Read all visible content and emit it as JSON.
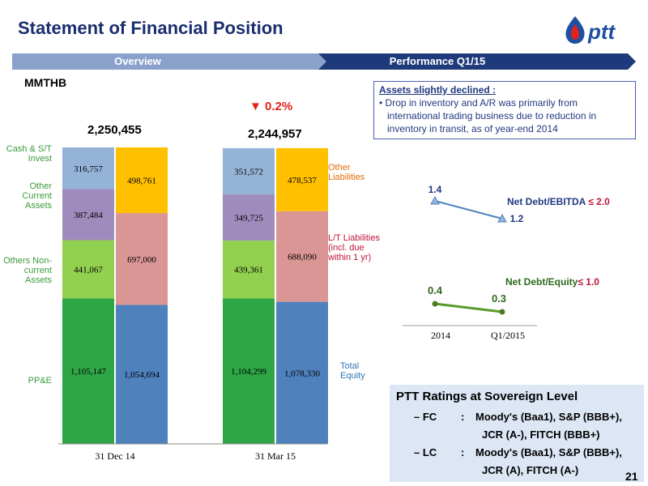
{
  "header": {
    "title": "Statement of Financial Position",
    "logo_text": "pttt",
    "tabs": [
      "Overview",
      "Performance Q1/15"
    ]
  },
  "unit": "MMTHB",
  "change_indicator": "0.2%",
  "totals": [
    "2,250,455",
    "2,244,957"
  ],
  "left_labels": {
    "cash": "Cash & S/T Invest",
    "other_current": "Other Current Assets",
    "others_noncurrent": "Others Non-current Assets",
    "ppe": "PP&E"
  },
  "right_labels": {
    "other_liabilities": "Other Liabilities",
    "lt_liabilities": "L/T Liabilities (incl. due within 1 yr)",
    "total_equity": "Total Equity"
  },
  "note": {
    "heading": "Assets slightly declined :",
    "bullet": "Drop in inventory and A/R was primarily from international trading business due to reduction in inventory in transit, as of year-end 2014"
  },
  "ratings": {
    "heading": "PTT Ratings at Sovereign Level",
    "rows": [
      {
        "key": "FC",
        "line1": "Moody's (Baa1), S&P (BBB+),",
        "line2": "JCR (A-), FITCH (BBB+)"
      },
      {
        "key": "LC",
        "line1": "Moody's (Baa1), S&P (BBB+),",
        "line2": "JCR (A), FITCH (A-)"
      }
    ]
  },
  "page_number": "21",
  "colors": {
    "ppe": "#2ea646",
    "others_noncurrent": "#92d050",
    "other_current": "#a08cbc",
    "cash": "#95b3d7",
    "equity": "#4f81bd",
    "lt_liabilities": "#da9694",
    "other_liabilities": "#ffc000",
    "title": "#1a2e6e",
    "banner": "#1f3a7a",
    "down": "#e32119"
  },
  "chart_data": [
    {
      "type": "bar",
      "stacked": true,
      "categories": [
        "31 Dec 14",
        "31 Mar 15"
      ],
      "series": [
        {
          "name": "PP&E",
          "values": [
            1105147,
            1104299
          ]
        },
        {
          "name": "Others Non-current Assets",
          "values": [
            441067,
            439361
          ]
        },
        {
          "name": "Other Current Assets",
          "values": [
            387484,
            349725
          ]
        },
        {
          "name": "Cash & S/T Invest",
          "values": [
            316757,
            351572
          ]
        },
        {
          "name": "Total Equity",
          "values": [
            1054694,
            1078330
          ]
        },
        {
          "name": "L/T Liabilities (incl. due within 1 yr)",
          "values": [
            697000,
            688090
          ]
        },
        {
          "name": "Other Liabilities",
          "values": [
            498761,
            478537
          ]
        }
      ],
      "value_labels": {
        "assets": [
          [
            "1,105,147",
            "441,067",
            "387,484",
            "316,757"
          ],
          [
            "1,104,299",
            "439,361",
            "349,725",
            "351,572"
          ]
        ],
        "liabilities": [
          [
            "1,054,694",
            "697,000",
            "498,761"
          ],
          [
            "1,078,330",
            "688,090",
            "478,537"
          ]
        ]
      }
    },
    {
      "type": "line",
      "categories": [
        "2014",
        "Q1/2015"
      ],
      "series": [
        {
          "name": "Net Debt/EBITDA",
          "values": [
            1.4,
            1.2
          ],
          "labels": [
            "1.4",
            "1.2"
          ],
          "target": "≤ 2.0"
        },
        {
          "name": "Net Debt/Equity",
          "values": [
            0.4,
            0.3
          ],
          "labels": [
            "0.4",
            "0.3"
          ],
          "target": "≤ 1.0"
        }
      ]
    }
  ]
}
